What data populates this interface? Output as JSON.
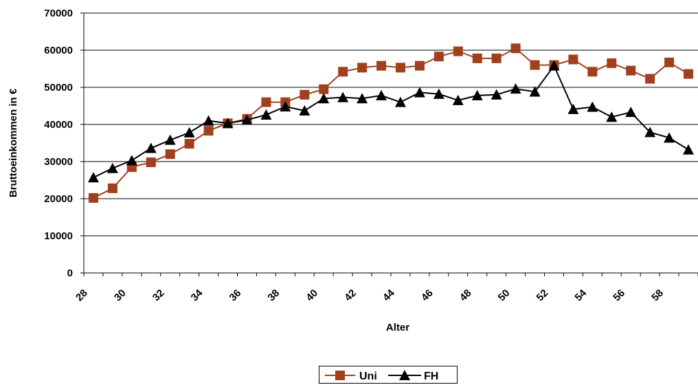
{
  "chart_data": {
    "type": "line",
    "title": "",
    "xlabel": "Alter",
    "ylabel": "Bruttoeinkommen in €",
    "ylim": [
      0,
      70000
    ],
    "yticks": [
      "0",
      "10000",
      "20000",
      "30000",
      "40000",
      "50000",
      "60000",
      "70000"
    ],
    "xlim": [
      28,
      60
    ],
    "xticks": [
      "28",
      "30",
      "32",
      "34",
      "36",
      "38",
      "40",
      "42",
      "44",
      "46",
      "48",
      "50",
      "52",
      "54",
      "56",
      "58"
    ],
    "grid": "horizontal",
    "legend_position": "bottom",
    "x": [
      28.5,
      29.5,
      30.5,
      31.5,
      32.5,
      33.5,
      34.5,
      35.5,
      36.5,
      37.5,
      38.5,
      39.5,
      40.5,
      41.5,
      42.5,
      43.5,
      44.5,
      45.5,
      46.5,
      47.5,
      48.5,
      49.5,
      50.5,
      51.5,
      52.5,
      53.5,
      54.5,
      55.5,
      56.5,
      57.5,
      58.5,
      59.5
    ],
    "series": [
      {
        "name": "Uni",
        "color": "#A0401C",
        "marker": "square",
        "values": [
          20200,
          22800,
          28500,
          29800,
          32000,
          34800,
          38300,
          40300,
          41500,
          46000,
          46000,
          48000,
          49500,
          54200,
          55300,
          55800,
          55300,
          55800,
          58300,
          59700,
          57800,
          57800,
          60500,
          56000,
          56000,
          57500,
          54200,
          56500,
          54500,
          52300,
          56700,
          53600
        ]
      },
      {
        "name": "FH",
        "color": "#000000",
        "marker": "triangle",
        "values": [
          25700,
          28200,
          30300,
          33600,
          35800,
          37800,
          41000,
          40300,
          41200,
          42600,
          44800,
          43700,
          47000,
          47300,
          47000,
          47800,
          46000,
          48600,
          48200,
          46500,
          47800,
          48000,
          49600,
          48800,
          55800,
          44100,
          44700,
          42000,
          43300,
          37900,
          36400,
          33200
        ]
      }
    ]
  }
}
